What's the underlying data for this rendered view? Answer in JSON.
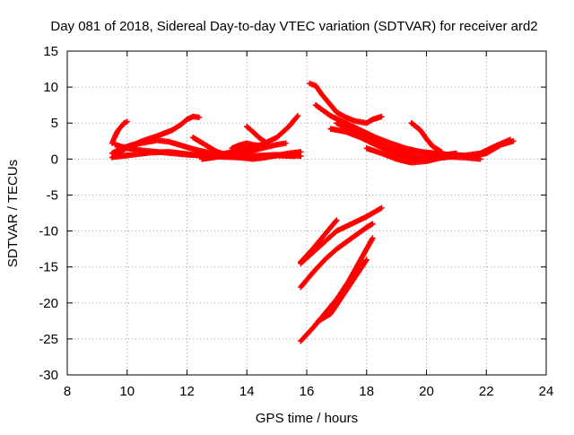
{
  "chart_data": {
    "type": "scatter",
    "title": "Day 081 of 2018, Sidereal Day-to-day VTEC variation (SDTVAR) for receiver ard2",
    "xlabel": "GPS time / hours",
    "ylabel": "SDTVAR / TECUs",
    "xlim": [
      8,
      24
    ],
    "ylim": [
      -30,
      15
    ],
    "xticks": [
      8,
      10,
      12,
      14,
      16,
      18,
      20,
      22,
      24
    ],
    "yticks": [
      -30,
      -25,
      -20,
      -15,
      -10,
      -5,
      0,
      5,
      10,
      15
    ],
    "grid": true,
    "legend": "none",
    "series_color": "#ff0000",
    "marker": "plus",
    "series": [
      {
        "x": [
          9.5,
          9.6,
          9.7,
          9.8,
          9.9,
          10.0
        ],
        "y": [
          2.2,
          3.2,
          4.0,
          4.5,
          5.0,
          5.2
        ]
      },
      {
        "x": [
          9.5,
          9.8,
          10.0,
          10.5,
          11.0,
          11.5,
          11.8,
          12.0,
          12.2,
          12.4
        ],
        "y": [
          0.2,
          1.0,
          1.6,
          2.5,
          3.2,
          4.0,
          4.8,
          5.5,
          5.9,
          5.8
        ]
      },
      {
        "x": [
          9.6,
          10.0,
          10.5,
          11.0,
          11.5,
          12.0,
          12.5,
          13.0,
          13.5,
          14.0,
          14.5,
          15.0,
          15.5,
          15.8
        ],
        "y": [
          2.0,
          1.5,
          1.2,
          1.0,
          0.8,
          0.6,
          0.5,
          0.6,
          0.5,
          0.4,
          0.5,
          0.6,
          0.5,
          0.4
        ]
      },
      {
        "x": [
          9.6,
          10.2,
          10.8,
          11.4,
          12.0,
          12.6,
          13.2,
          13.8,
          14.4,
          15.0,
          15.6
        ],
        "y": [
          0.3,
          0.6,
          0.9,
          1.0,
          0.7,
          0.4,
          0.3,
          0.2,
          0.3,
          0.5,
          0.4
        ]
      },
      {
        "x": [
          9.5,
          9.8,
          10.2,
          10.6,
          11.0,
          11.4,
          11.8,
          12.2,
          12.6,
          13.0
        ],
        "y": [
          0.8,
          1.5,
          2.0,
          2.3,
          2.6,
          2.4,
          1.9,
          1.4,
          1.0,
          0.8
        ]
      },
      {
        "x": [
          12.2,
          12.6,
          13.0,
          13.4,
          13.8,
          14.2,
          14.6,
          15.0,
          15.4,
          15.8
        ],
        "y": [
          3.0,
          2.0,
          1.0,
          0.5,
          0.2,
          0.0,
          0.2,
          0.5,
          0.8,
          1.0
        ]
      },
      {
        "x": [
          13.5,
          13.8,
          14.0,
          14.2,
          14.5
        ],
        "y": [
          1.5,
          2.0,
          2.2,
          2.0,
          1.8
        ]
      },
      {
        "x": [
          14.0,
          14.2,
          14.4,
          14.6
        ],
        "y": [
          4.5,
          3.8,
          3.0,
          2.4
        ]
      },
      {
        "x": [
          13.0,
          13.5,
          14.0,
          14.5,
          15.0,
          15.4,
          15.6,
          15.7
        ],
        "y": [
          0.5,
          1.0,
          1.5,
          2.0,
          3.0,
          4.5,
          5.5,
          6.0
        ]
      },
      {
        "x": [
          12.5,
          13.0,
          13.5,
          14.0,
          14.5,
          15.0,
          15.3
        ],
        "y": [
          0.0,
          0.3,
          0.6,
          1.0,
          1.5,
          2.0,
          2.2
        ]
      },
      {
        "x": [
          16.1,
          16.3,
          16.5,
          16.8,
          17.0,
          17.3,
          17.6,
          18.0,
          18.2,
          18.5
        ],
        "y": [
          10.5,
          10.2,
          9.0,
          7.5,
          6.5,
          5.8,
          5.3,
          5.0,
          5.5,
          5.9
        ]
      },
      {
        "x": [
          16.3,
          16.8,
          17.3,
          17.8,
          18.3,
          18.8,
          19.3,
          19.8,
          20.3,
          20.8
        ],
        "y": [
          7.5,
          6.0,
          5.0,
          4.0,
          3.0,
          2.2,
          1.5,
          1.0,
          0.7,
          0.5
        ]
      },
      {
        "x": [
          16.8,
          17.3,
          17.8,
          18.3,
          18.8,
          19.3,
          19.8,
          20.3,
          20.8,
          21.3,
          21.8
        ],
        "y": [
          4.2,
          3.8,
          3.0,
          2.0,
          1.0,
          0.2,
          -0.2,
          0.1,
          0.3,
          0.2,
          0.0
        ]
      },
      {
        "x": [
          17.0,
          17.5,
          18.0,
          18.5,
          19.0,
          19.5,
          20.0,
          20.5,
          21.0
        ],
        "y": [
          5.0,
          4.0,
          3.0,
          2.0,
          1.0,
          0.5,
          0.3,
          0.5,
          0.8
        ]
      },
      {
        "x": [
          18.0,
          18.5,
          19.0,
          19.5,
          20.0,
          20.5,
          21.0,
          21.5,
          22.0,
          22.5,
          22.9
        ],
        "y": [
          1.5,
          0.8,
          0.0,
          -0.5,
          -0.3,
          0.2,
          0.5,
          0.4,
          0.8,
          2.0,
          2.5
        ]
      },
      {
        "x": [
          18.8,
          19.3,
          19.8,
          20.3,
          20.8,
          21.3,
          21.8,
          22.3,
          22.8
        ],
        "y": [
          1.5,
          1.2,
          1.0,
          0.8,
          0.6,
          0.5,
          0.8,
          1.8,
          2.7
        ]
      },
      {
        "x": [
          19.5,
          19.8,
          20.0,
          20.2,
          20.5
        ],
        "y": [
          5.0,
          4.0,
          2.8,
          1.8,
          1.0
        ]
      },
      {
        "x": [
          15.8,
          16.2,
          16.6,
          17.0,
          17.5,
          18.0,
          18.5
        ],
        "y": [
          -14.5,
          -13.0,
          -11.5,
          -10.0,
          -9.0,
          -8.0,
          -6.8
        ]
      },
      {
        "x": [
          15.8,
          16.2,
          16.6,
          17.0
        ],
        "y": [
          -14.3,
          -12.5,
          -10.5,
          -8.5
        ]
      },
      {
        "x": [
          15.8,
          16.2,
          16.6,
          17.0,
          17.5,
          18.0,
          18.2
        ],
        "y": [
          -17.8,
          -15.8,
          -14.0,
          -12.5,
          -11.0,
          -9.5,
          -9.0
        ]
      },
      {
        "x": [
          15.8,
          16.2,
          16.6,
          17.0,
          17.4,
          17.8,
          18.2
        ],
        "y": [
          -25.3,
          -23.5,
          -21.5,
          -19.5,
          -17.0,
          -14.0,
          -11.0
        ]
      },
      {
        "x": [
          16.4,
          16.8,
          17.2,
          17.6,
          18.0
        ],
        "y": [
          -22.5,
          -21.5,
          -19.0,
          -16.5,
          -14.0
        ]
      }
    ]
  }
}
